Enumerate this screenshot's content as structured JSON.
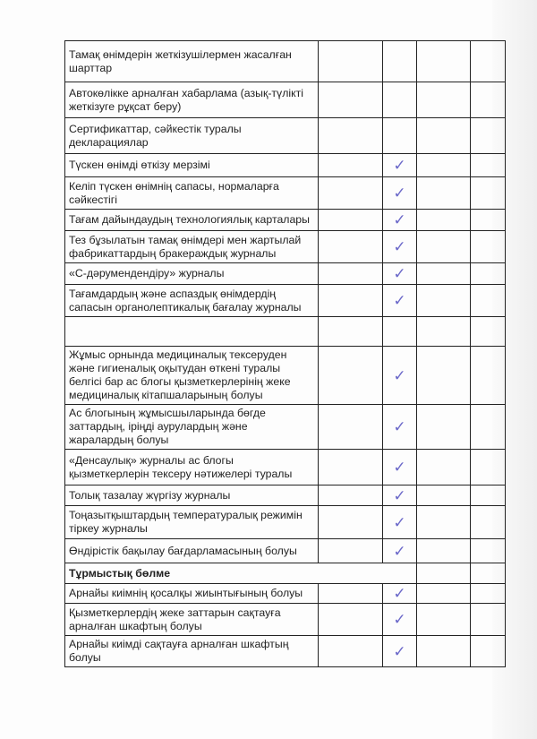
{
  "checklist": {
    "rows": [
      {
        "label": "Тамақ өнімдерін жеткізушілермен жасалған шарттар",
        "checked": false
      },
      {
        "label": "Автокөлікке арналған хабарлама (азық-түлікті жеткізуге рұқсат беру)",
        "checked": false
      },
      {
        "label": "Сертификаттар, сәйкестік туралы декларациялар",
        "checked": false
      },
      {
        "label": "Түскен өнімді өткізу мерзімі",
        "checked": true
      },
      {
        "label": "Келіп түскен өнімнің сапасы, нормаларға сәйкестігі",
        "checked": true
      },
      {
        "label": "Тағам дайындаудың технологиялық карталары",
        "checked": true
      },
      {
        "label": "Тез бұзылатын тамақ өнімдері мен жартылай фабрикаттардың бракераждық журналы",
        "checked": true
      },
      {
        "label": "«С-дәрумендендіру» журналы",
        "checked": true
      },
      {
        "label": "Тағамдардың және аспаздық өнімдердің сапасын органолептикалық бағалау журналы",
        "checked": true
      },
      {
        "label": "",
        "checked": false
      },
      {
        "label": "Жұмыс орнында медициналық тексеруден және гигиеналық оқытудан өткені туралы белгісі бар ас блогы қызметкерлерінің жеке медициналық кітапшаларының болуы",
        "checked": true
      },
      {
        "label": "Ас блогының жұмысшыларында бөгде заттардың, іріңді аурулардың және жаралардың болуы",
        "checked": true
      },
      {
        "label": "«Денсаулық» журналы ас блогы қызметкерлерін тексеру нәтижелері туралы",
        "checked": true
      },
      {
        "label": "Толық тазалау жүргізу журналы",
        "checked": true
      },
      {
        "label": "Тоңазытқыштардың температуралық режимін тіркеу журналы",
        "checked": true
      },
      {
        "label": "Өндірістік бақылау бағдарламасының болуы",
        "checked": true
      }
    ],
    "section_title": "Тұрмыстық бөлме",
    "section_rows": [
      {
        "label": "Арнайы киімнің қосалқы жиынтығының болуы",
        "checked": true
      },
      {
        "label": "Қызметкерлердің жеке заттарын сақтауға арналған шкафтың болуы",
        "checked": true
      },
      {
        "label": "Арнайы киімді сақтауға арналған шкафтың болуы",
        "checked": true
      }
    ],
    "check_mark": "✓",
    "check_color": "#6b68c9"
  }
}
